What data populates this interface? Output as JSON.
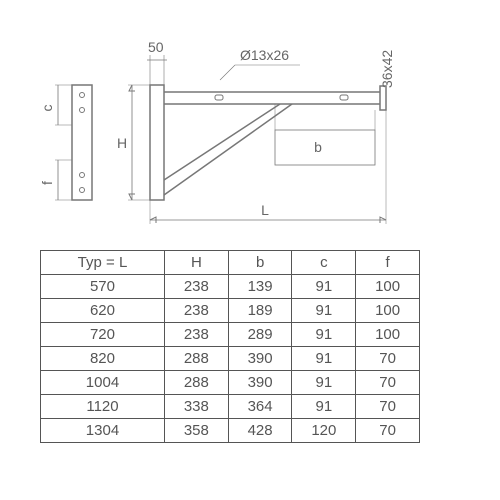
{
  "diagram": {
    "labels": {
      "top_offset": "50",
      "hole": "Ø13x26",
      "end_plate": "36x42",
      "b_inner": "b",
      "H": "H",
      "L": "L",
      "c_side": "c",
      "f_side": "f"
    },
    "stroke_color": "#777",
    "text_color": "#666",
    "fontsize": 14
  },
  "table": {
    "columns": [
      "Typ = L",
      "H",
      "b",
      "c",
      "f"
    ],
    "rows": [
      [
        "570",
        "238",
        "139",
        "91",
        "100"
      ],
      [
        "620",
        "238",
        "189",
        "91",
        "100"
      ],
      [
        "720",
        "238",
        "289",
        "91",
        "100"
      ],
      [
        "820",
        "288",
        "390",
        "91",
        "70"
      ],
      [
        "1004",
        "288",
        "390",
        "91",
        "70"
      ],
      [
        "1120",
        "338",
        "364",
        "91",
        "70"
      ],
      [
        "1304",
        "358",
        "428",
        "120",
        "70"
      ]
    ],
    "border_color": "#555",
    "text_color": "#555",
    "fontsize": 15
  }
}
